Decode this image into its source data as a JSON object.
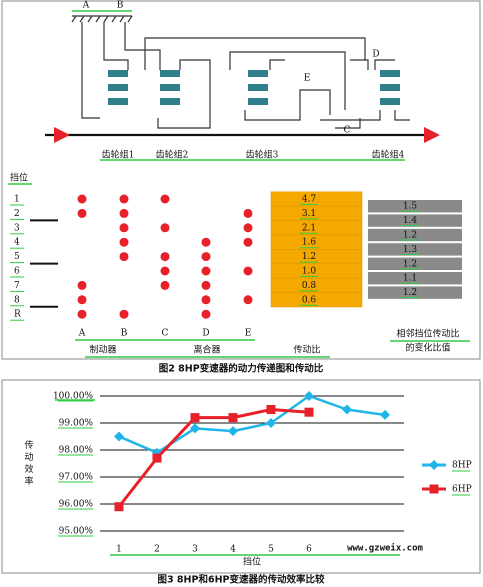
{
  "fig2": {
    "diagram": {
      "labels": [
        "A",
        "B",
        "C",
        "D",
        "E"
      ],
      "gear_sets": [
        "齿轮组1",
        "齿轮组2",
        "齿轮组3",
        "齿轮组4"
      ]
    },
    "table": {
      "header": "挡位",
      "gears": [
        "1",
        "2",
        "3",
        "4",
        "5",
        "6",
        "7",
        "8",
        "R"
      ],
      "columns": [
        "A",
        "B",
        "C",
        "D",
        "E"
      ],
      "engaged": [
        [
          1,
          1,
          1,
          0,
          0
        ],
        [
          1,
          1,
          0,
          0,
          1
        ],
        [
          0,
          1,
          1,
          0,
          1
        ],
        [
          0,
          1,
          0,
          1,
          1
        ],
        [
          0,
          1,
          1,
          1,
          0
        ],
        [
          0,
          0,
          1,
          1,
          1
        ],
        [
          1,
          0,
          1,
          1,
          0
        ],
        [
          1,
          0,
          0,
          1,
          1
        ],
        [
          1,
          1,
          0,
          1,
          0
        ]
      ],
      "ratios": [
        "4.7",
        "3.1",
        "2.1",
        "1.6",
        "1.2",
        "1.0",
        "0.8",
        "0.6"
      ],
      "steps": [
        "1.5",
        "1.4",
        "1.2",
        "1.3",
        "1.2",
        "1.1",
        "1.2"
      ],
      "labels": [
        "制动器",
        "离合器",
        "传动比"
      ],
      "step_label": [
        "相邻挡位传动比",
        "的变化比值"
      ]
    },
    "caption": "图2 8HP变速器的动力传递图和传动比"
  },
  "chart_data": {
    "type": "line",
    "title": "图3 8HP和6HP变速器的传动效率比较",
    "y_label": "传动效率",
    "x_label": "挡位",
    "categories": [
      "1",
      "2",
      "3",
      "4",
      "5",
      "6",
      null,
      null
    ],
    "series": [
      {
        "name": "8HP",
        "color": "#1fb5e8",
        "marker": "diamond",
        "values": [
          98.5,
          97.9,
          98.8,
          98.7,
          99.0,
          100.0,
          99.5,
          99.3
        ]
      },
      {
        "name": "6HP",
        "color": "#e8202a",
        "marker": "square",
        "values": [
          95.9,
          97.7,
          99.2,
          99.2,
          99.5,
          99.4,
          null,
          null
        ]
      }
    ],
    "ylim": [
      95,
      100
    ],
    "yticks": [
      {
        "value": 95,
        "label": "95.00%"
      },
      {
        "value": 96,
        "label": "96.00%"
      },
      {
        "value": 97,
        "label": "97.00%"
      },
      {
        "value": 98,
        "label": "98.00%"
      },
      {
        "value": 99,
        "label": "99.00%"
      },
      {
        "value": 100,
        "label": "100.00%"
      }
    ],
    "grid": true,
    "legend": "right"
  },
  "watermark": "www.gzweix.com"
}
